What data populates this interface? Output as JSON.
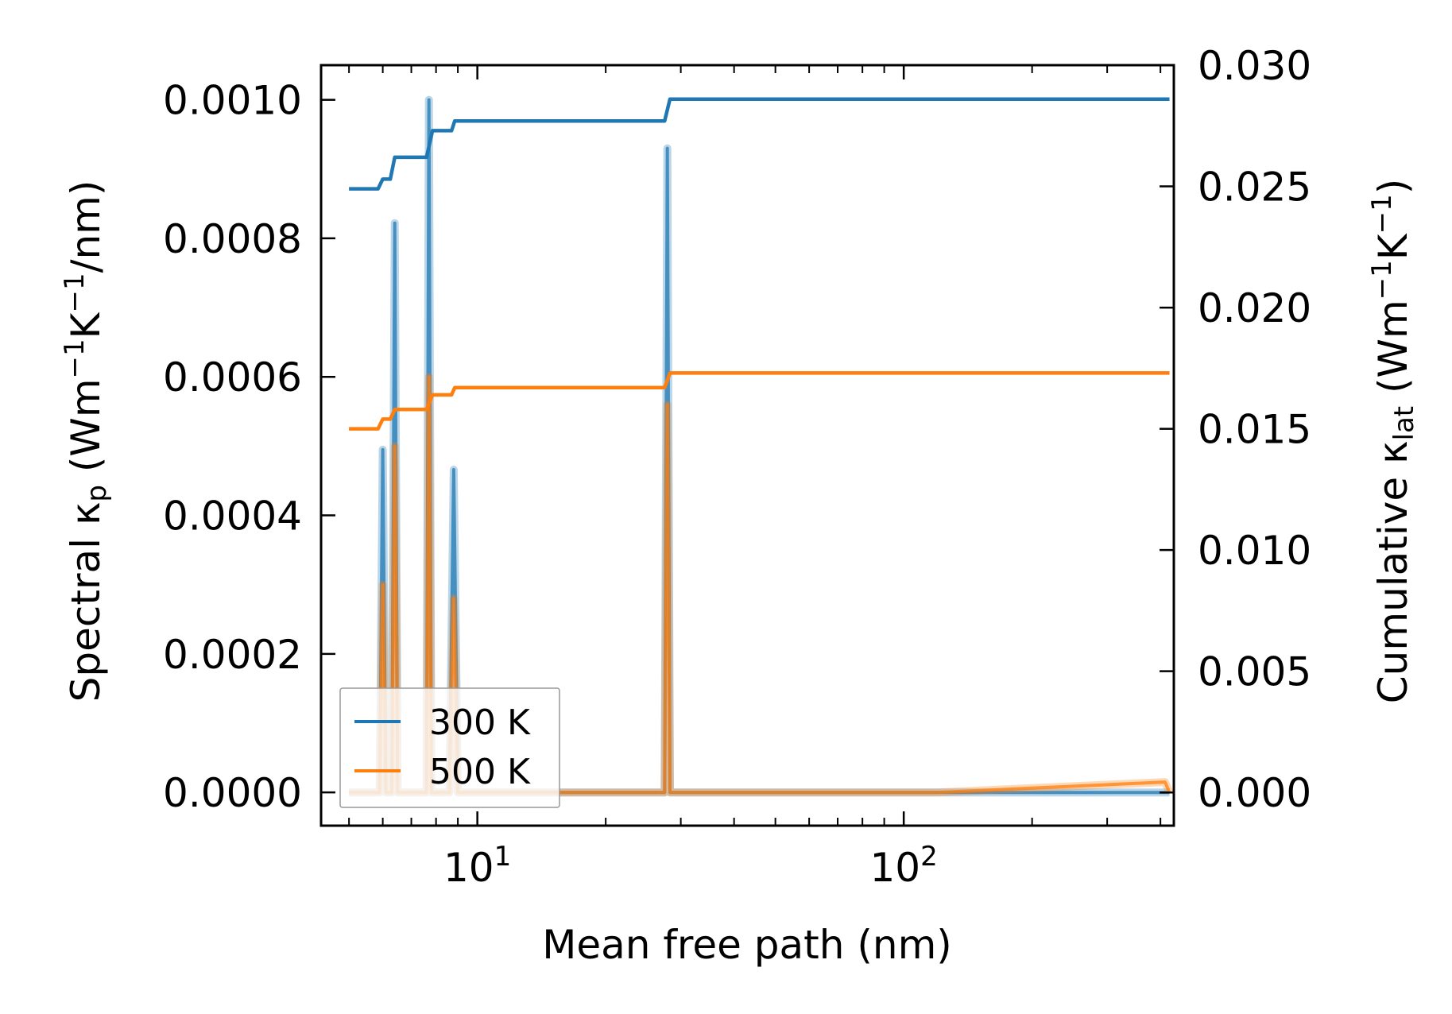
{
  "chart_data": {
    "type": "line",
    "xlabel": "Mean free path (nm)",
    "x_scale": "log",
    "xlim": [
      4.3,
      430
    ],
    "x_ticks": [
      {
        "value": 10,
        "base": "10",
        "exp": "1"
      },
      {
        "value": 100,
        "base": "10",
        "exp": "2"
      }
    ],
    "ylabel_left": {
      "pre": "Spectral κ",
      "sub": "p",
      "post": " (Wm",
      "sup1": "−1",
      "mid": "K",
      "sup2": "−1",
      "end": "/nm)"
    },
    "ylim_left": [
      -4.8e-05,
      0.00105
    ],
    "y_ticks_left": [
      "0.0000",
      "0.0002",
      "0.0004",
      "0.0006",
      "0.0008",
      "0.0010"
    ],
    "ylabel_right": {
      "pre": "Cumulative κ",
      "sub": "lat",
      "post": " (Wm",
      "sup1": "−1",
      "mid": "K",
      "sup2": "−1",
      "end": ")"
    },
    "ylim_right": [
      -0.00137,
      0.03
    ],
    "y_ticks_right": [
      "0.000",
      "0.005",
      "0.010",
      "0.015",
      "0.020",
      "0.025",
      "0.030"
    ],
    "legend": {
      "placement": "lower-left",
      "entries": [
        "300 K",
        "500 K"
      ]
    },
    "colors": {
      "300 K": "#1f77b4",
      "500 K": "#ff7f0e"
    },
    "grid": false,
    "spectral_series": [
      {
        "name": "300 K",
        "x": [
          5,
          5.9,
          6.0,
          6.1,
          6.3,
          6.4,
          6.5,
          6.6,
          7.6,
          7.7,
          7.8,
          7.9,
          8.6,
          8.8,
          9.0,
          27.5,
          27.9,
          28.3,
          120,
          410,
          420
        ],
        "y": [
          0,
          0,
          0.000495,
          0,
          0,
          0.000822,
          0,
          0,
          0,
          0.001,
          0,
          0,
          0,
          0.000466,
          0,
          0,
          0.00093,
          0,
          0,
          0,
          0
        ]
      },
      {
        "name": "500 K",
        "x": [
          5,
          5.9,
          6.0,
          6.1,
          6.3,
          6.4,
          6.5,
          6.6,
          7.6,
          7.7,
          7.8,
          7.9,
          8.6,
          8.8,
          9.0,
          27.5,
          27.9,
          28.3,
          120,
          410,
          420
        ],
        "y": [
          0,
          0,
          0.0003,
          0,
          0,
          0.0005,
          0,
          0,
          0,
          0.0006,
          0,
          0,
          0,
          0.00028,
          0,
          0,
          0.00056,
          0,
          0,
          1.5e-05,
          0
        ]
      }
    ],
    "cumulative_series": [
      {
        "name": "300 K",
        "x": [
          5,
          5.85,
          6.0,
          6.25,
          6.4,
          7.6,
          7.85,
          8.7,
          8.85,
          27.5,
          28.3,
          420
        ],
        "y": [
          0.0249,
          0.0249,
          0.0253,
          0.0253,
          0.0262,
          0.0262,
          0.0273,
          0.0273,
          0.0277,
          0.0277,
          0.0286,
          0.0286
        ]
      },
      {
        "name": "500 K",
        "x": [
          5,
          5.85,
          6.0,
          6.25,
          6.4,
          7.6,
          7.85,
          8.7,
          8.85,
          27.5,
          28.3,
          420
        ],
        "y": [
          0.015,
          0.015,
          0.0154,
          0.0154,
          0.0158,
          0.0158,
          0.0164,
          0.0164,
          0.0167,
          0.0167,
          0.0173,
          0.0173
        ]
      }
    ]
  }
}
